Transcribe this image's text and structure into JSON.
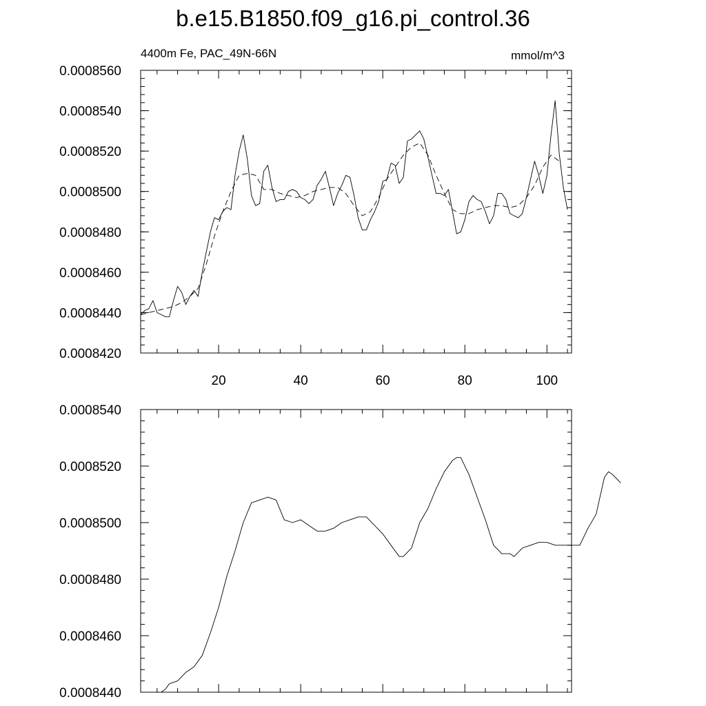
{
  "header": {
    "title": "b.e15.B1850.f09_g16.pi_control.36",
    "left_string": "4400m Fe, PAC_49N-66N",
    "right_string": "mmol/m^3"
  },
  "chart_data": [
    {
      "type": "line",
      "panel": "top",
      "xlim": [
        1,
        106
      ],
      "ylim": [
        0.000842,
        0.000856
      ],
      "x_ticks": [
        20,
        40,
        60,
        80,
        100
      ],
      "y_ticks": [
        0.000842,
        0.000844,
        0.000846,
        0.000848,
        0.00085,
        0.000852,
        0.000854,
        0.000856
      ],
      "x_tick_labels": [
        "20",
        "40",
        "60",
        "80",
        "100"
      ],
      "y_tick_labels": [
        "0.0008420",
        "0.0008440",
        "0.0008460",
        "0.0008480",
        "0.0008500",
        "0.0008520",
        "0.0008540",
        "0.0008560"
      ],
      "x_minor_ticks": [
        5,
        10,
        15,
        25,
        30,
        35,
        45,
        50,
        55,
        65,
        70,
        75,
        85,
        90,
        95,
        105
      ],
      "y_minor_step": 4e-07,
      "grid": false,
      "series": [
        {
          "style": "solid",
          "points": [
            [
              1,
              0.0008439
            ],
            [
              2,
              0.0008441
            ],
            [
              3,
              0.0008442
            ],
            [
              4,
              0.0008446
            ],
            [
              5,
              0.000844
            ],
            [
              6,
              0.0008439
            ],
            [
              7,
              0.0008438
            ],
            [
              8,
              0.0008438
            ],
            [
              9,
              0.0008446
            ],
            [
              10,
              0.0008453
            ],
            [
              11,
              0.000845
            ],
            [
              12,
              0.0008444
            ],
            [
              13,
              0.0008448
            ],
            [
              14,
              0.0008451
            ],
            [
              15,
              0.0008448
            ],
            [
              16,
              0.000846
            ],
            [
              17,
              0.000847
            ],
            [
              18,
              0.000848
            ],
            [
              19,
              0.0008487
            ],
            [
              20,
              0.0008486
            ],
            [
              21,
              0.000849
            ],
            [
              22,
              0.0008492
            ],
            [
              23,
              0.0008491
            ],
            [
              24,
              0.0008508
            ],
            [
              25,
              0.000852
            ],
            [
              26,
              0.0008528
            ],
            [
              27,
              0.0008516
            ],
            [
              28,
              0.0008498
            ],
            [
              29,
              0.0008493
            ],
            [
              30,
              0.0008494
            ],
            [
              31,
              0.000851
            ],
            [
              32,
              0.0008513
            ],
            [
              33,
              0.0008502
            ],
            [
              34,
              0.0008495
            ],
            [
              35,
              0.0008496
            ],
            [
              36,
              0.0008496
            ],
            [
              37,
              0.00085
            ],
            [
              38,
              0.0008501
            ],
            [
              39,
              0.00085
            ],
            [
              40,
              0.0008497
            ],
            [
              41,
              0.0008496
            ],
            [
              42,
              0.0008494
            ],
            [
              43,
              0.0008496
            ],
            [
              44,
              0.0008503
            ],
            [
              45,
              0.0008506
            ],
            [
              46,
              0.000851
            ],
            [
              47,
              0.0008502
            ],
            [
              48,
              0.0008493
            ],
            [
              49,
              0.0008499
            ],
            [
              50,
              0.0008503
            ],
            [
              51,
              0.0008508
            ],
            [
              52,
              0.0008507
            ],
            [
              53,
              0.0008498
            ],
            [
              54,
              0.0008487
            ],
            [
              55,
              0.0008481
            ],
            [
              56,
              0.0008481
            ],
            [
              57,
              0.0008486
            ],
            [
              58,
              0.000849
            ],
            [
              59,
              0.0008495
            ],
            [
              60,
              0.0008505
            ],
            [
              61,
              0.0008506
            ],
            [
              62,
              0.0008514
            ],
            [
              63,
              0.0008513
            ],
            [
              64,
              0.0008504
            ],
            [
              65,
              0.0008507
            ],
            [
              66,
              0.0008525
            ],
            [
              67,
              0.0008526
            ],
            [
              68,
              0.0008528
            ],
            [
              69,
              0.000853
            ],
            [
              70,
              0.0008526
            ],
            [
              71,
              0.0008517
            ],
            [
              72,
              0.0008508
            ],
            [
              73,
              0.0008499
            ],
            [
              74,
              0.0008499
            ],
            [
              75,
              0.0008498
            ],
            [
              76,
              0.0008501
            ],
            [
              77,
              0.000849
            ],
            [
              78,
              0.0008479
            ],
            [
              79,
              0.000848
            ],
            [
              80,
              0.0008486
            ],
            [
              81,
              0.0008495
            ],
            [
              82,
              0.0008498
            ],
            [
              83,
              0.0008496
            ],
            [
              84,
              0.0008495
            ],
            [
              85,
              0.000849
            ],
            [
              86,
              0.0008484
            ],
            [
              87,
              0.0008488
            ],
            [
              88,
              0.0008499
            ],
            [
              89,
              0.0008499
            ],
            [
              90,
              0.0008496
            ],
            [
              91,
              0.0008489
            ],
            [
              92,
              0.0008488
            ],
            [
              93,
              0.0008487
            ],
            [
              94,
              0.0008489
            ],
            [
              95,
              0.0008497
            ],
            [
              96,
              0.0008506
            ],
            [
              97,
              0.0008515
            ],
            [
              98,
              0.0008508
            ],
            [
              99,
              0.0008499
            ],
            [
              100,
              0.0008508
            ],
            [
              101,
              0.0008528
            ],
            [
              102,
              0.0008545
            ],
            [
              103,
              0.0008519
            ],
            [
              104,
              0.0008502
            ],
            [
              105,
              0.0008491
            ]
          ]
        },
        {
          "style": "dashed",
          "points": [
            [
              1,
              0.0008439
            ],
            [
              3,
              0.000844
            ],
            [
              5,
              0.0008441
            ],
            [
              7,
              0.0008442
            ],
            [
              9,
              0.0008443
            ],
            [
              11,
              0.0008445
            ],
            [
              13,
              0.0008448
            ],
            [
              15,
              0.0008452
            ],
            [
              17,
              0.0008464
            ],
            [
              19,
              0.0008478
            ],
            [
              21,
              0.000849
            ],
            [
              23,
              0.00085
            ],
            [
              25,
              0.0008508
            ],
            [
              27,
              0.0008509
            ],
            [
              29,
              0.0008508
            ],
            [
              31,
              0.0008501
            ],
            [
              33,
              0.0008501
            ],
            [
              35,
              0.0008499
            ],
            [
              37,
              0.0008498
            ],
            [
              39,
              0.0008497
            ],
            [
              41,
              0.0008498
            ],
            [
              43,
              0.00085
            ],
            [
              45,
              0.0008501
            ],
            [
              47,
              0.0008502
            ],
            [
              49,
              0.0008502
            ],
            [
              51,
              0.0008499
            ],
            [
              53,
              0.0008493
            ],
            [
              55,
              0.0008488
            ],
            [
              57,
              0.000849
            ],
            [
              59,
              0.0008497
            ],
            [
              61,
              0.0008506
            ],
            [
              63,
              0.0008512
            ],
            [
              65,
              0.0008518
            ],
            [
              67,
              0.0008522
            ],
            [
              69,
              0.0008524
            ],
            [
              71,
              0.0008518
            ],
            [
              73,
              0.0008508
            ],
            [
              75,
              0.0008499
            ],
            [
              77,
              0.0008491
            ],
            [
              79,
              0.0008489
            ],
            [
              81,
              0.0008489
            ],
            [
              83,
              0.0008491
            ],
            [
              85,
              0.0008492
            ],
            [
              87,
              0.0008493
            ],
            [
              89,
              0.0008493
            ],
            [
              91,
              0.0008492
            ],
            [
              93,
              0.0008493
            ],
            [
              95,
              0.0008497
            ],
            [
              97,
              0.0008503
            ],
            [
              99,
              0.0008512
            ],
            [
              101,
              0.0008518
            ],
            [
              103,
              0.0008515
            ]
          ]
        }
      ]
    },
    {
      "type": "line",
      "panel": "bottom",
      "xlim": [
        1,
        106
      ],
      "ylim": [
        0.000844,
        0.000854
      ],
      "x_ticks": [
        20,
        40,
        60,
        80,
        100
      ],
      "y_ticks": [
        0.000844,
        0.000846,
        0.000848,
        0.00085,
        0.000852,
        0.000854
      ],
      "y_tick_labels": [
        "0.0008440",
        "0.0008460",
        "0.0008480",
        "0.0008500",
        "0.0008520",
        "0.0008540"
      ],
      "x_minor_ticks": [
        5,
        10,
        15,
        25,
        30,
        35,
        45,
        50,
        55,
        65,
        70,
        75,
        85,
        90,
        95,
        105
      ],
      "y_minor_step": 4e-07,
      "grid": false,
      "series": [
        {
          "style": "solid",
          "points": [
            [
              4,
              0.000844
            ],
            [
              6,
              0.000844
            ],
            [
              7,
              0.0008441
            ],
            [
              8,
              0.0008443
            ],
            [
              10,
              0.0008444
            ],
            [
              12,
              0.0008447
            ],
            [
              14,
              0.0008449
            ],
            [
              16,
              0.0008453
            ],
            [
              18,
              0.0008461
            ],
            [
              20,
              0.000847
            ],
            [
              22,
              0.0008481
            ],
            [
              24,
              0.000849
            ],
            [
              26,
              0.00085
            ],
            [
              28,
              0.0008507
            ],
            [
              30,
              0.0008508
            ],
            [
              32,
              0.0008509
            ],
            [
              34,
              0.0008508
            ],
            [
              36,
              0.0008501
            ],
            [
              38,
              0.00085
            ],
            [
              40,
              0.0008501
            ],
            [
              42,
              0.0008499
            ],
            [
              44,
              0.0008497
            ],
            [
              46,
              0.0008497
            ],
            [
              48,
              0.0008498
            ],
            [
              50,
              0.00085
            ],
            [
              52,
              0.0008501
            ],
            [
              54,
              0.0008502
            ],
            [
              56,
              0.0008502
            ],
            [
              58,
              0.0008499
            ],
            [
              60,
              0.0008496
            ],
            [
              62,
              0.0008492
            ],
            [
              64,
              0.0008488
            ],
            [
              65,
              0.0008488
            ],
            [
              67,
              0.0008491
            ],
            [
              69,
              0.00085
            ],
            [
              71,
              0.0008505
            ],
            [
              73,
              0.0008512
            ],
            [
              75,
              0.0008518
            ],
            [
              77,
              0.0008522
            ],
            [
              78,
              0.0008523
            ],
            [
              79,
              0.0008523
            ],
            [
              81,
              0.0008517
            ],
            [
              83,
              0.0008509
            ],
            [
              85,
              0.0008501
            ],
            [
              87,
              0.0008492
            ],
            [
              89,
              0.0008489
            ],
            [
              91,
              0.0008489
            ],
            [
              92,
              0.0008488
            ],
            [
              94,
              0.0008491
            ],
            [
              96,
              0.0008492
            ],
            [
              98,
              0.0008493
            ],
            [
              100,
              0.0008493
            ],
            [
              102,
              0.0008492
            ],
            [
              104,
              0.0008492
            ],
            [
              106,
              0.0008492
            ],
            [
              108,
              0.0008492
            ],
            [
              110,
              0.0008498
            ],
            [
              112,
              0.0008503
            ],
            [
              114,
              0.0008516
            ],
            [
              115,
              0.0008518
            ],
            [
              116,
              0.0008517
            ],
            [
              118,
              0.0008514
            ]
          ]
        }
      ]
    }
  ]
}
